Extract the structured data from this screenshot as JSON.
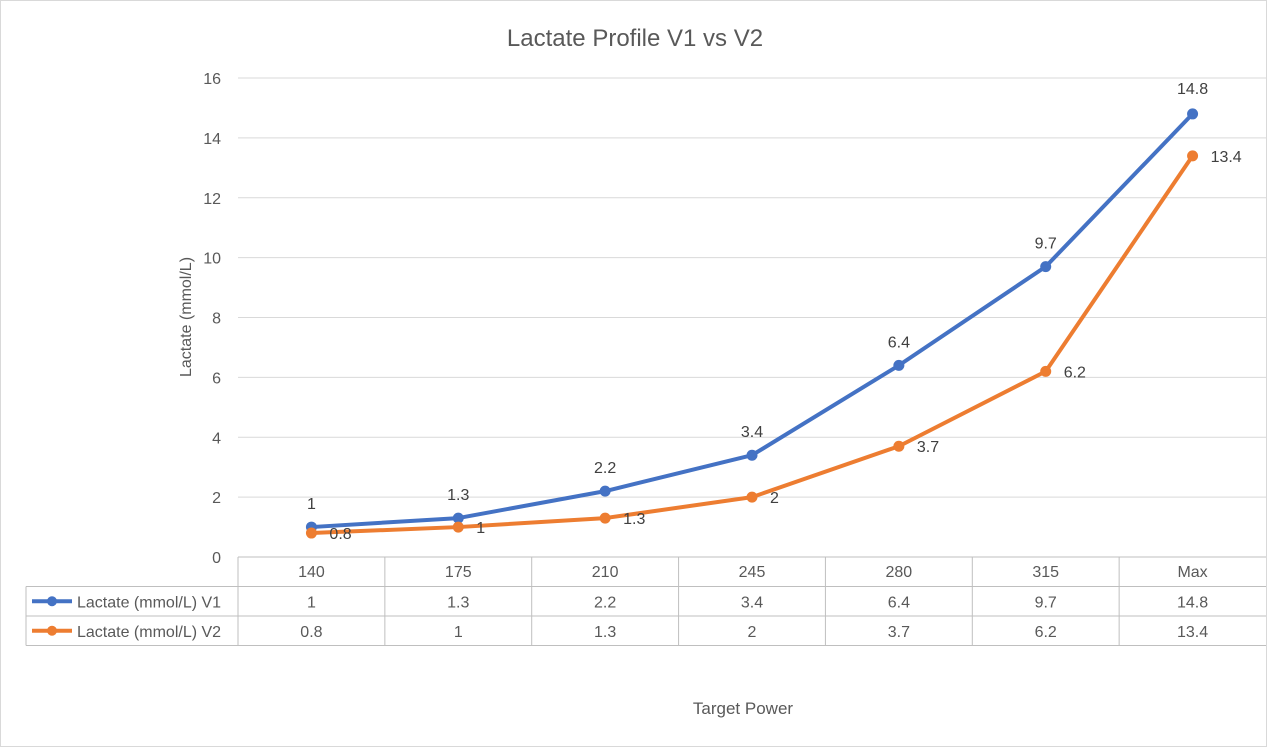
{
  "chart_data": {
    "type": "line",
    "title": "Lactate Profile V1 vs V2",
    "xlabel": "Target Power",
    "ylabel": "Lactate (mmol/L)",
    "categories": [
      "140",
      "175",
      "210",
      "245",
      "280",
      "315",
      "Max"
    ],
    "ylim": [
      0,
      16
    ],
    "yticks": [
      0,
      2,
      4,
      6,
      8,
      10,
      12,
      14,
      16
    ],
    "grid": true,
    "legend": "data-table",
    "series": [
      {
        "name": "Lactate (mmol/L) V1",
        "color": "#4472C4",
        "values": [
          1,
          1.3,
          2.2,
          3.4,
          6.4,
          9.7,
          14.8
        ],
        "labels": [
          "1",
          "1.3",
          "2.2",
          "3.4",
          "6.4",
          "9.7",
          "14.8"
        ]
      },
      {
        "name": "Lactate (mmol/L) V2",
        "color": "#ED7D31",
        "values": [
          0.8,
          1,
          1.3,
          2,
          3.7,
          6.2,
          13.4
        ],
        "labels": [
          "0.8",
          "1",
          "1.3",
          "2",
          "3.7",
          "6.2",
          "13.4"
        ]
      }
    ]
  }
}
